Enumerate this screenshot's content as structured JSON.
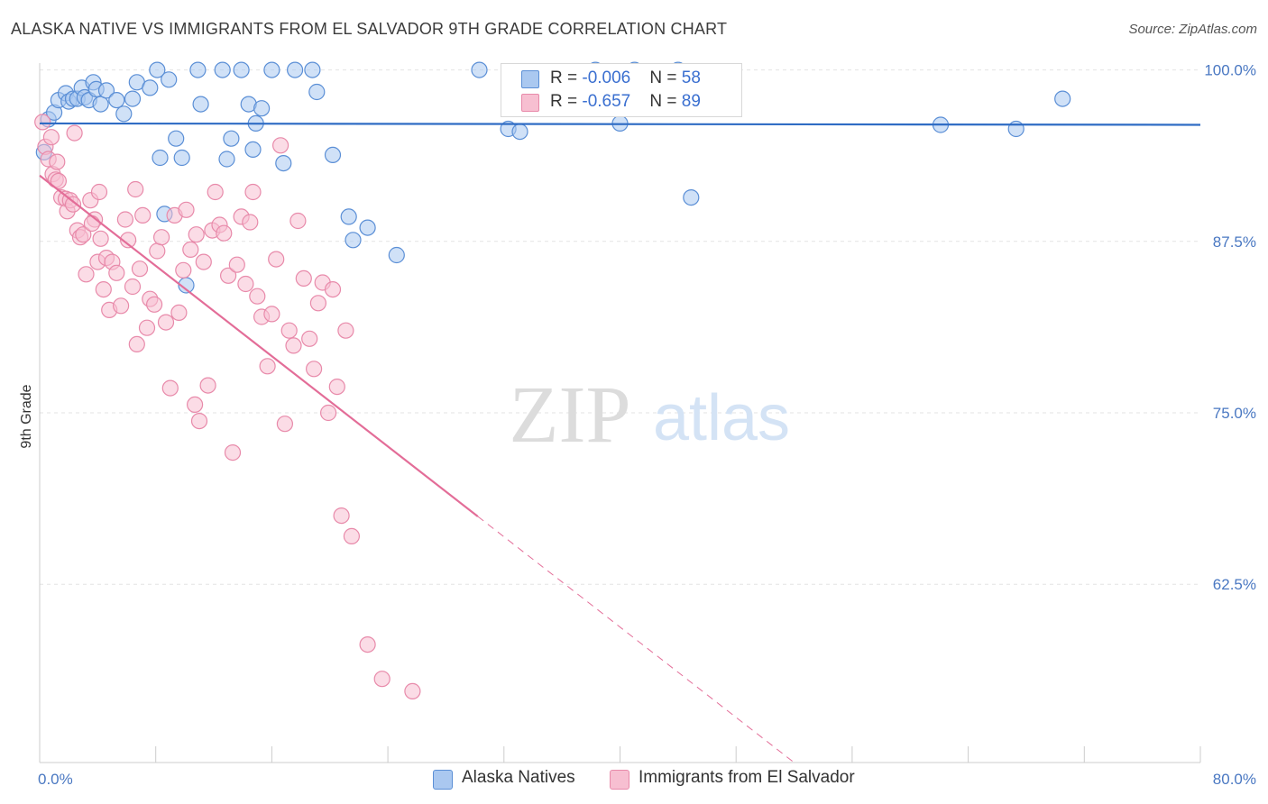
{
  "title": "ALASKA NATIVE VS IMMIGRANTS FROM EL SALVADOR 9TH GRADE CORRELATION CHART",
  "source": "Source: ZipAtlas.com",
  "watermark": {
    "zip": "ZIP",
    "atlas": "atlas"
  },
  "colors": {
    "blue_fill": "#aac8f0",
    "blue_stroke": "#5b8fd6",
    "blue_line": "#2f6cc4",
    "pink_fill": "#f7bfd1",
    "pink_stroke": "#e88aaa",
    "pink_line": "#e36d98",
    "grid": "#e3e3e3",
    "tick_text": "#4a78c2"
  },
  "legend": {
    "rows": [
      {
        "r_label": "R = ",
        "r_value": "-0.006",
        "n_label": "N = ",
        "n_value": "58"
      },
      {
        "r_label": "R = ",
        "r_value": "-0.657",
        "n_label": "N = ",
        "n_value": "89"
      }
    ]
  },
  "bottom_legend": [
    "Alaska Natives",
    "Immigrants from El Salvador"
  ],
  "chart_data": {
    "type": "scatter",
    "xlabel": "",
    "ylabel": "9th Grade",
    "xlim": [
      0,
      80
    ],
    "ylim": [
      49.5,
      100.5
    ],
    "x_tick_labels": [
      "0.0%",
      "80.0%"
    ],
    "y_ticks": [
      100,
      87.5,
      75,
      62.5
    ],
    "y_tick_labels": [
      "100.0%",
      "87.5%",
      "75.0%",
      "62.5%"
    ],
    "grid": true,
    "legend_position": "top-center",
    "series": [
      {
        "name": "Alaska Natives",
        "r": -0.006,
        "n": 58,
        "trend": {
          "x": [
            0,
            80
          ],
          "y": [
            96.1,
            96.0
          ],
          "solid_to": 80
        },
        "points": [
          [
            0.3,
            94
          ],
          [
            0.6,
            96.4
          ],
          [
            1.0,
            96.9
          ],
          [
            1.3,
            97.8
          ],
          [
            1.8,
            98.3
          ],
          [
            2.0,
            97.7
          ],
          [
            2.3,
            97.9
          ],
          [
            2.6,
            97.9
          ],
          [
            2.9,
            98.7
          ],
          [
            3.1,
            98.0
          ],
          [
            3.4,
            97.8
          ],
          [
            3.7,
            99.1
          ],
          [
            3.9,
            98.6
          ],
          [
            4.2,
            97.5
          ],
          [
            4.6,
            98.5
          ],
          [
            5.3,
            97.8
          ],
          [
            5.8,
            96.8
          ],
          [
            6.4,
            97.9
          ],
          [
            6.7,
            99.1
          ],
          [
            7.6,
            98.7
          ],
          [
            8.1,
            100
          ],
          [
            8.3,
            93.6
          ],
          [
            8.6,
            89.5
          ],
          [
            8.9,
            99.3
          ],
          [
            9.4,
            95.0
          ],
          [
            9.8,
            93.6
          ],
          [
            10.1,
            84.3
          ],
          [
            10.9,
            100
          ],
          [
            11.1,
            97.5
          ],
          [
            12.6,
            100
          ],
          [
            12.9,
            93.5
          ],
          [
            13.2,
            95.0
          ],
          [
            13.9,
            100
          ],
          [
            14.4,
            97.5
          ],
          [
            14.7,
            94.2
          ],
          [
            14.9,
            96.1
          ],
          [
            15.3,
            97.2
          ],
          [
            16.0,
            100
          ],
          [
            16.8,
            93.2
          ],
          [
            17.6,
            100
          ],
          [
            18.8,
            100
          ],
          [
            19.1,
            98.4
          ],
          [
            20.2,
            93.8
          ],
          [
            21.3,
            89.3
          ],
          [
            21.6,
            87.6
          ],
          [
            22.6,
            88.5
          ],
          [
            24.6,
            86.5
          ],
          [
            30.3,
            100
          ],
          [
            32.3,
            95.7
          ],
          [
            33.1,
            95.5
          ],
          [
            38.3,
            100
          ],
          [
            40.0,
            96.1
          ],
          [
            44.9,
            90.7
          ],
          [
            62.1,
            96.0
          ],
          [
            67.3,
            95.7
          ],
          [
            70.5,
            97.9
          ],
          [
            44.0,
            100
          ],
          [
            41.0,
            100
          ]
        ]
      },
      {
        "name": "Immigrants from El Salvador",
        "r": -0.657,
        "n": 89,
        "trend": {
          "x": [
            0,
            52
          ],
          "y": [
            92.3,
            49.5
          ],
          "solid_to": 30.2
        },
        "points": [
          [
            0.2,
            96.2
          ],
          [
            0.4,
            94.4
          ],
          [
            0.6,
            93.5
          ],
          [
            0.9,
            92.4
          ],
          [
            1.1,
            92.0
          ],
          [
            1.3,
            91.9
          ],
          [
            1.5,
            90.7
          ],
          [
            1.8,
            90.6
          ],
          [
            1.9,
            89.7
          ],
          [
            2.1,
            90.5
          ],
          [
            2.3,
            90.2
          ],
          [
            2.6,
            88.3
          ],
          [
            2.8,
            87.8
          ],
          [
            3.0,
            88.0
          ],
          [
            3.2,
            85.1
          ],
          [
            3.5,
            90.5
          ],
          [
            3.8,
            89.1
          ],
          [
            4.0,
            86.0
          ],
          [
            4.2,
            87.7
          ],
          [
            4.4,
            84.0
          ],
          [
            4.6,
            86.3
          ],
          [
            4.8,
            82.5
          ],
          [
            5.0,
            86.0
          ],
          [
            5.3,
            85.2
          ],
          [
            5.6,
            82.8
          ],
          [
            5.9,
            89.1
          ],
          [
            6.1,
            87.6
          ],
          [
            6.4,
            84.2
          ],
          [
            6.7,
            80.0
          ],
          [
            6.9,
            85.5
          ],
          [
            7.1,
            89.4
          ],
          [
            7.4,
            81.2
          ],
          [
            7.6,
            83.3
          ],
          [
            7.9,
            82.9
          ],
          [
            8.1,
            86.8
          ],
          [
            8.4,
            87.8
          ],
          [
            8.7,
            81.6
          ],
          [
            9.0,
            76.8
          ],
          [
            9.3,
            89.4
          ],
          [
            9.6,
            82.3
          ],
          [
            9.9,
            85.4
          ],
          [
            10.1,
            89.8
          ],
          [
            10.4,
            86.9
          ],
          [
            10.7,
            75.6
          ],
          [
            11.0,
            74.4
          ],
          [
            11.3,
            86.0
          ],
          [
            11.6,
            77.0
          ],
          [
            11.9,
            88.3
          ],
          [
            12.1,
            91.1
          ],
          [
            12.4,
            88.7
          ],
          [
            12.7,
            88.1
          ],
          [
            13.0,
            85.0
          ],
          [
            13.3,
            72.1
          ],
          [
            13.6,
            85.8
          ],
          [
            13.9,
            89.3
          ],
          [
            14.2,
            84.4
          ],
          [
            14.5,
            88.9
          ],
          [
            14.7,
            91.1
          ],
          [
            15.0,
            83.5
          ],
          [
            15.3,
            82.0
          ],
          [
            15.7,
            78.4
          ],
          [
            16.0,
            82.2
          ],
          [
            16.3,
            86.2
          ],
          [
            16.6,
            94.5
          ],
          [
            16.9,
            74.2
          ],
          [
            17.2,
            81.0
          ],
          [
            17.5,
            79.9
          ],
          [
            17.8,
            89.0
          ],
          [
            18.2,
            84.8
          ],
          [
            18.6,
            80.4
          ],
          [
            18.9,
            78.2
          ],
          [
            19.2,
            83.0
          ],
          [
            19.5,
            84.5
          ],
          [
            19.9,
            75.0
          ],
          [
            20.2,
            84.0
          ],
          [
            20.5,
            76.9
          ],
          [
            20.8,
            67.5
          ],
          [
            21.1,
            81.0
          ],
          [
            21.5,
            66.0
          ],
          [
            22.6,
            58.1
          ],
          [
            23.6,
            55.6
          ],
          [
            25.7,
            54.7
          ],
          [
            4.1,
            91.1
          ],
          [
            6.6,
            91.3
          ],
          [
            2.4,
            95.4
          ],
          [
            1.2,
            93.3
          ],
          [
            0.8,
            95.1
          ],
          [
            3.6,
            88.8
          ],
          [
            10.8,
            88.0
          ]
        ]
      }
    ]
  }
}
